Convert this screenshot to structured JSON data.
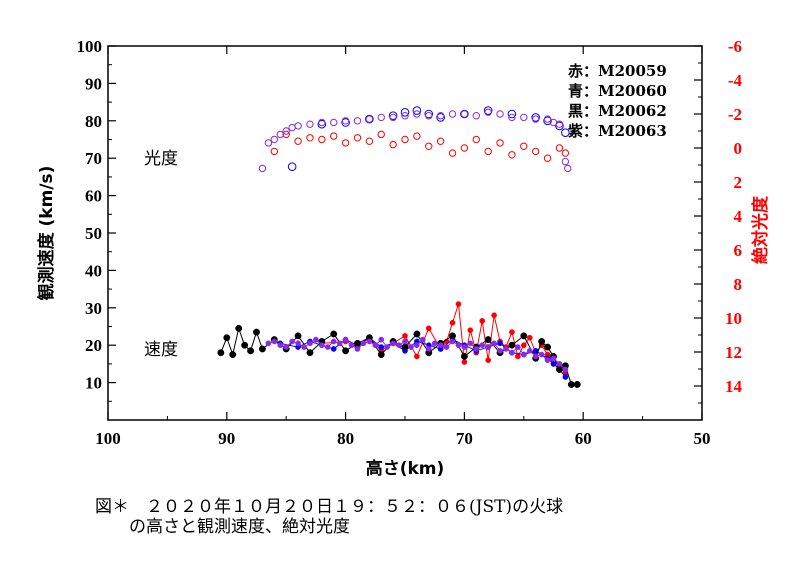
{
  "chart_data": {
    "type": "scatter",
    "xlabel": "高さ(km)",
    "ylabel": "観測速度 (km/s)",
    "y2label": "絶対光度",
    "xlim": [
      100,
      50
    ],
    "ylim": [
      0,
      100
    ],
    "y2lim": [
      -6,
      16
    ],
    "x_ticks": [
      "100",
      "90",
      "80",
      "70",
      "60",
      "50"
    ],
    "y_ticks": [
      "10",
      "20",
      "30",
      "40",
      "50",
      "60",
      "70",
      "80",
      "90",
      "100"
    ],
    "y2_ticks": [
      "-6",
      "-4",
      "-2",
      "0",
      "2",
      "4",
      "6",
      "8",
      "10",
      "12",
      "14"
    ],
    "annotations": {
      "brightness": "光度",
      "speed": "速度"
    },
    "legend": [
      {
        "label": "赤：M20059",
        "color": "#ff0000"
      },
      {
        "label": "青：M20060",
        "color": "#0000ff"
      },
      {
        "label": "黒：M20062",
        "color": "#000000"
      },
      {
        "label": "紫：M20063",
        "color": "#8a2be2"
      }
    ],
    "brightness_series": [
      {
        "name": "M20059",
        "color": "#ff0000",
        "x": [
          86.0,
          85.0,
          84.0,
          83.0,
          82.0,
          81.0,
          80.0,
          79.0,
          78.0,
          77.0,
          76.0,
          75.0,
          74.0,
          73.0,
          72.0,
          71.0,
          70.0,
          69.0,
          68.0,
          67.0,
          66.0,
          65.0,
          64.0,
          63.0,
          62.0,
          61.5
        ],
        "y": [
          0.2,
          -0.8,
          -0.4,
          -0.6,
          -0.5,
          -0.7,
          -0.3,
          -0.6,
          -0.4,
          -0.8,
          -0.2,
          -0.5,
          -0.7,
          -0.1,
          -0.4,
          0.3,
          0.0,
          -0.5,
          0.2,
          -0.3,
          0.4,
          -0.1,
          0.2,
          0.6,
          0.0,
          0.3
        ]
      },
      {
        "name": "M20060",
        "color": "#0000ff",
        "x": [
          84.5,
          82.0,
          80.0,
          78.0,
          76.0,
          75.0,
          74.0,
          73.0,
          72.0,
          70.0,
          68.0,
          66.0,
          64.0,
          63.0,
          62.0,
          61.5
        ],
        "y": [
          1.1,
          -1.4,
          -1.5,
          -1.7,
          -1.9,
          -2.1,
          -2.2,
          -2.0,
          -1.8,
          -2.0,
          -2.2,
          -2.0,
          -1.8,
          -1.6,
          -1.3,
          -0.9
        ]
      },
      {
        "name": "M20063",
        "color": "#8a2be2",
        "x": [
          87.0,
          86.5,
          86.0,
          85.5,
          85.0,
          84.5,
          84.0,
          83.0,
          82.0,
          81.0,
          80.0,
          79.0,
          78.0,
          77.0,
          76.0,
          75.0,
          74.0,
          73.0,
          72.0,
          71.0,
          70.0,
          69.0,
          68.0,
          67.0,
          66.0,
          65.0,
          64.0,
          63.0,
          62.5,
          62.0,
          61.5,
          61.3
        ],
        "y": [
          1.2,
          -0.3,
          -0.5,
          -0.8,
          -1.0,
          -1.2,
          -1.3,
          -1.4,
          -1.5,
          -1.5,
          -1.6,
          -1.6,
          -1.7,
          -1.8,
          -1.8,
          -1.9,
          -2.0,
          -1.9,
          -1.9,
          -2.0,
          -2.0,
          -1.9,
          -2.1,
          -2.0,
          -1.8,
          -1.8,
          -1.7,
          -1.7,
          -1.5,
          -1.4,
          0.8,
          1.2
        ]
      }
    ],
    "speed_series": [
      {
        "name": "M20059",
        "color": "#ff0000",
        "x": [
          82.0,
          80.0,
          79.0,
          78.0,
          77.0,
          76.0,
          75.0,
          74.0,
          73.0,
          72.0,
          71.5,
          71.0,
          70.5,
          70.0,
          69.5,
          69.0,
          68.5,
          68.0,
          67.5,
          67.0,
          66.5,
          66.0,
          65.5,
          65.0,
          64.5,
          64.0,
          63.5,
          63.0,
          62.5,
          62.0,
          61.5
        ],
        "y": [
          20.5,
          21.0,
          19.5,
          22.0,
          18.5,
          20.5,
          22.5,
          17.0,
          24.5,
          19.0,
          21.0,
          26.0,
          31.0,
          15.5,
          24.0,
          18.0,
          26.5,
          16.0,
          28.0,
          21.0,
          19.5,
          23.5,
          17.0,
          20.0,
          22.0,
          18.0,
          20.0,
          17.5,
          15.0,
          14.0,
          12.5
        ]
      },
      {
        "name": "M20060",
        "color": "#0000ff",
        "x": [
          85.5,
          84.0,
          83.0,
          82.0,
          81.0,
          80.0,
          79.0,
          78.0,
          77.0,
          76.0,
          75.0,
          74.0,
          73.0,
          72.0,
          71.0,
          70.0,
          69.0,
          68.0,
          67.0,
          66.0,
          65.0,
          64.0,
          63.0,
          62.5,
          62.0,
          61.5
        ],
        "y": [
          20.5,
          19.5,
          21.0,
          20.0,
          19.0,
          21.5,
          20.0,
          22.0,
          19.5,
          20.5,
          18.5,
          21.0,
          20.0,
          19.0,
          21.5,
          20.0,
          18.5,
          19.5,
          20.5,
          18.0,
          17.5,
          18.5,
          16.5,
          15.0,
          13.5,
          11.5
        ]
      },
      {
        "name": "M20062",
        "color": "#000000",
        "x": [
          90.5,
          90.0,
          89.5,
          89.0,
          88.5,
          88.0,
          87.5,
          87.0,
          86.0,
          85.0,
          84.0,
          83.0,
          82.0,
          81.0,
          80.0,
          79.0,
          78.0,
          77.0,
          76.0,
          75.0,
          74.0,
          73.0,
          72.0,
          71.0,
          70.0,
          69.0,
          68.0,
          67.0,
          66.0,
          65.0,
          64.0,
          63.5,
          63.0,
          62.5,
          62.0,
          61.5,
          61.0,
          60.5
        ],
        "y": [
          18.0,
          22.0,
          17.5,
          24.5,
          20.0,
          18.5,
          23.5,
          19.0,
          21.5,
          19.0,
          22.5,
          18.0,
          21.0,
          23.0,
          18.5,
          20.5,
          22.0,
          17.5,
          21.0,
          19.5,
          23.0,
          18.0,
          20.5,
          22.5,
          17.0,
          19.5,
          21.5,
          18.0,
          20.0,
          22.5,
          16.5,
          21.0,
          19.5,
          17.0,
          13.5,
          14.5,
          9.5,
          9.5
        ]
      },
      {
        "name": "M20063",
        "color": "#8a2be2",
        "x": [
          86.5,
          86.0,
          85.5,
          85.0,
          84.5,
          84.0,
          83.5,
          83.0,
          82.5,
          82.0,
          81.5,
          81.0,
          80.5,
          80.0,
          79.5,
          79.0,
          78.5,
          78.0,
          77.5,
          77.0,
          76.5,
          76.0,
          75.5,
          75.0,
          74.5,
          74.0,
          73.5,
          73.0,
          72.5,
          72.0,
          71.5,
          71.0,
          70.5,
          70.0,
          69.5,
          69.0,
          68.5,
          68.0,
          67.5,
          67.0,
          66.5,
          66.0,
          65.5,
          65.0,
          64.5,
          64.0,
          63.5,
          63.0,
          62.5,
          62.0,
          61.5
        ],
        "y": [
          20.5,
          21.0,
          20.0,
          19.5,
          21.0,
          20.5,
          19.5,
          20.5,
          21.5,
          20.0,
          19.5,
          21.0,
          20.5,
          21.5,
          20.0,
          19.0,
          20.5,
          21.0,
          20.0,
          21.5,
          19.5,
          20.5,
          20.0,
          21.0,
          19.5,
          20.0,
          21.5,
          19.0,
          20.5,
          20.0,
          19.5,
          21.0,
          20.0,
          19.5,
          20.5,
          19.0,
          20.0,
          19.5,
          20.5,
          18.5,
          19.0,
          18.0,
          19.5,
          17.5,
          18.5,
          17.0,
          17.5,
          16.0,
          16.5,
          15.0,
          13.5
        ]
      }
    ]
  },
  "caption": {
    "line1": "図＊　２０２０年１０月２０日１９：５２：０６(JST)の火球",
    "line2": "　　の高さと観測速度、絶対光度"
  }
}
